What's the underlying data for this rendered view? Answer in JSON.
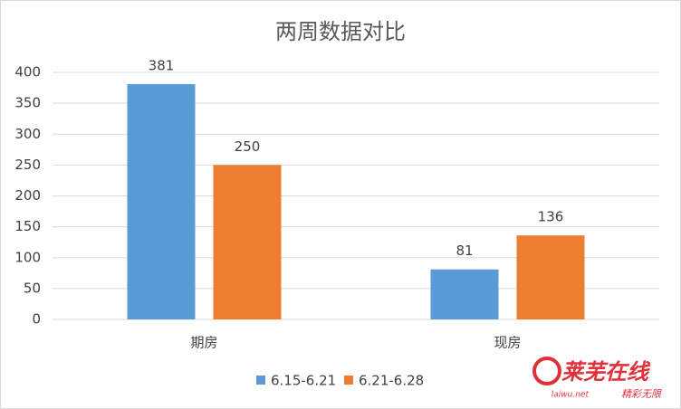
{
  "chart_data": {
    "type": "bar",
    "title": "两周数据对比",
    "categories": [
      "期房",
      "现房"
    ],
    "series": [
      {
        "name": "6.15-6.21",
        "color": "#5b9bd5",
        "values": [
          381,
          81
        ]
      },
      {
        "name": "6.21-6.28",
        "color": "#ed7d31",
        "values": [
          250,
          136
        ]
      }
    ],
    "ylim": [
      0,
      400
    ],
    "yticks": [
      0,
      50,
      100,
      150,
      200,
      250,
      300,
      350,
      400
    ],
    "grid": true,
    "legend": "bottom"
  },
  "watermark": {
    "name": "莱芜在线",
    "url": "laiwu.net",
    "slogan": "精彩无限"
  }
}
